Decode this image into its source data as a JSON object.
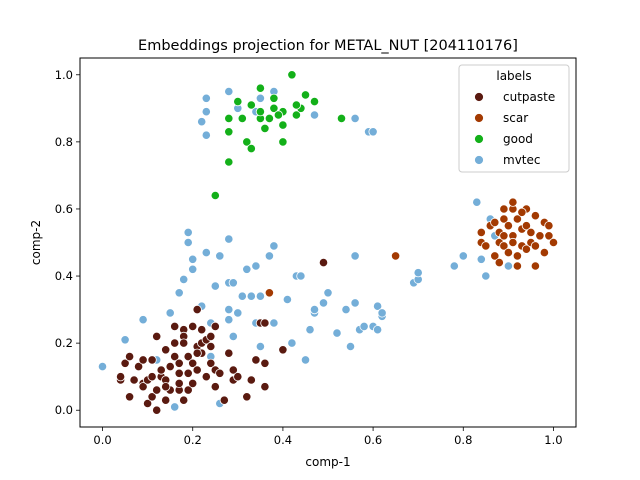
{
  "chart_data": {
    "type": "scatter",
    "title": "Embeddings projection for METAL_NUT [204110176]",
    "xlabel": "comp-1",
    "ylabel": "comp-2",
    "xlim": [
      -0.05,
      1.05
    ],
    "ylim": [
      -0.05,
      1.05
    ],
    "xticks": [
      "0.0",
      "0.2",
      "0.4",
      "0.6",
      "0.8",
      "1.0"
    ],
    "yticks": [
      "0.0",
      "0.2",
      "0.4",
      "0.6",
      "0.8",
      "1.0"
    ],
    "grid": false,
    "legend": {
      "title": "labels",
      "placement": "top-right",
      "entries": [
        "cutpaste",
        "scar",
        "good",
        "mvtec"
      ]
    },
    "colors": {
      "cutpaste": "#5a1a10",
      "scar": "#a33a02",
      "good": "#13b019",
      "mvtec": "#74aed8"
    },
    "series": [
      {
        "name": "mvtec",
        "points": [
          [
            0.0,
            0.13
          ],
          [
            0.05,
            0.21
          ],
          [
            0.09,
            0.27
          ],
          [
            0.12,
            0.15
          ],
          [
            0.15,
            0.29
          ],
          [
            0.16,
            0.01
          ],
          [
            0.17,
            0.35
          ],
          [
            0.18,
            0.39
          ],
          [
            0.19,
            0.5
          ],
          [
            0.19,
            0.53
          ],
          [
            0.2,
            0.42
          ],
          [
            0.2,
            0.45
          ],
          [
            0.22,
            0.31
          ],
          [
            0.23,
            0.47
          ],
          [
            0.24,
            0.26
          ],
          [
            0.24,
            0.16
          ],
          [
            0.25,
            0.37
          ],
          [
            0.26,
            0.02
          ],
          [
            0.26,
            0.46
          ],
          [
            0.28,
            0.51
          ],
          [
            0.28,
            0.38
          ],
          [
            0.28,
            0.3
          ],
          [
            0.28,
            0.27
          ],
          [
            0.29,
            0.38
          ],
          [
            0.29,
            0.22
          ],
          [
            0.3,
            0.29
          ],
          [
            0.31,
            0.34
          ],
          [
            0.32,
            0.42
          ],
          [
            0.33,
            0.34
          ],
          [
            0.34,
            0.26
          ],
          [
            0.34,
            0.43
          ],
          [
            0.35,
            0.34
          ],
          [
            0.35,
            0.19
          ],
          [
            0.36,
            0.26
          ],
          [
            0.37,
            0.46
          ],
          [
            0.38,
            0.26
          ],
          [
            0.38,
            0.49
          ],
          [
            0.4,
            0.18
          ],
          [
            0.41,
            0.33
          ],
          [
            0.42,
            0.2
          ],
          [
            0.43,
            0.4
          ],
          [
            0.44,
            0.4
          ],
          [
            0.45,
            0.15
          ],
          [
            0.46,
            0.24
          ],
          [
            0.47,
            0.29
          ],
          [
            0.47,
            0.3
          ],
          [
            0.49,
            0.32
          ],
          [
            0.5,
            0.35
          ],
          [
            0.52,
            0.23
          ],
          [
            0.54,
            0.3
          ],
          [
            0.55,
            0.19
          ],
          [
            0.56,
            0.46
          ],
          [
            0.56,
            0.32
          ],
          [
            0.57,
            0.24
          ],
          [
            0.58,
            0.25
          ],
          [
            0.6,
            0.25
          ],
          [
            0.61,
            0.31
          ],
          [
            0.62,
            0.28
          ],
          [
            0.62,
            0.29
          ],
          [
            0.61,
            0.24
          ],
          [
            0.69,
            0.38
          ],
          [
            0.7,
            0.39
          ],
          [
            0.7,
            0.41
          ],
          [
            0.78,
            0.43
          ],
          [
            0.8,
            0.46
          ],
          [
            0.84,
            0.45
          ],
          [
            0.83,
            0.62
          ],
          [
            0.85,
            0.4
          ],
          [
            0.86,
            0.57
          ],
          [
            0.87,
            0.52
          ],
          [
            0.9,
            0.43
          ],
          [
            0.88,
            0.5
          ],
          [
            0.22,
            0.86
          ],
          [
            0.23,
            0.93
          ],
          [
            0.23,
            0.89
          ],
          [
            0.23,
            0.82
          ],
          [
            0.28,
            0.95
          ],
          [
            0.3,
            0.9
          ],
          [
            0.34,
            0.89
          ],
          [
            0.35,
            0.93
          ],
          [
            0.38,
            0.95
          ],
          [
            0.47,
            0.88
          ],
          [
            0.56,
            0.87
          ],
          [
            0.59,
            0.83
          ],
          [
            0.6,
            0.83
          ]
        ]
      },
      {
        "name": "good",
        "points": [
          [
            0.25,
            0.64
          ],
          [
            0.28,
            0.74
          ],
          [
            0.28,
            0.83
          ],
          [
            0.28,
            0.87
          ],
          [
            0.3,
            0.92
          ],
          [
            0.31,
            0.87
          ],
          [
            0.32,
            0.8
          ],
          [
            0.33,
            0.78
          ],
          [
            0.33,
            0.91
          ],
          [
            0.35,
            0.96
          ],
          [
            0.35,
            0.87
          ],
          [
            0.35,
            0.89
          ],
          [
            0.36,
            0.84
          ],
          [
            0.37,
            0.87
          ],
          [
            0.38,
            0.93
          ],
          [
            0.38,
            0.9
          ],
          [
            0.4,
            0.8
          ],
          [
            0.4,
            0.85
          ],
          [
            0.4,
            0.89
          ],
          [
            0.42,
            1.0
          ],
          [
            0.43,
            0.88
          ],
          [
            0.44,
            0.9
          ],
          [
            0.45,
            0.94
          ],
          [
            0.47,
            0.92
          ],
          [
            0.53,
            0.87
          ],
          [
            0.43,
            0.91
          ],
          [
            0.39,
            0.88
          ]
        ]
      },
      {
        "name": "scar",
        "points": [
          [
            0.37,
            0.35
          ],
          [
            0.65,
            0.46
          ],
          [
            0.84,
            0.53
          ],
          [
            0.84,
            0.5
          ],
          [
            0.85,
            0.49
          ],
          [
            0.86,
            0.55
          ],
          [
            0.87,
            0.46
          ],
          [
            0.87,
            0.56
          ],
          [
            0.88,
            0.5
          ],
          [
            0.88,
            0.53
          ],
          [
            0.89,
            0.57
          ],
          [
            0.89,
            0.52
          ],
          [
            0.89,
            0.49
          ],
          [
            0.9,
            0.47
          ],
          [
            0.9,
            0.55
          ],
          [
            0.91,
            0.6
          ],
          [
            0.91,
            0.62
          ],
          [
            0.91,
            0.52
          ],
          [
            0.91,
            0.5
          ],
          [
            0.92,
            0.46
          ],
          [
            0.92,
            0.57
          ],
          [
            0.93,
            0.54
          ],
          [
            0.93,
            0.49
          ],
          [
            0.94,
            0.48
          ],
          [
            0.94,
            0.55
          ],
          [
            0.94,
            0.6
          ],
          [
            0.95,
            0.53
          ],
          [
            0.95,
            0.5
          ],
          [
            0.96,
            0.43
          ],
          [
            0.96,
            0.58
          ],
          [
            0.96,
            0.49
          ],
          [
            0.97,
            0.52
          ],
          [
            0.98,
            0.47
          ],
          [
            0.98,
            0.56
          ],
          [
            0.99,
            0.52
          ],
          [
            1.0,
            0.5
          ],
          [
            0.99,
            0.55
          ],
          [
            0.92,
            0.43
          ],
          [
            0.88,
            0.44
          ],
          [
            0.89,
            0.6
          ],
          [
            0.93,
            0.59
          ]
        ]
      },
      {
        "name": "cutpaste",
        "points": [
          [
            0.04,
            0.09
          ],
          [
            0.04,
            0.1
          ],
          [
            0.05,
            0.14
          ],
          [
            0.06,
            0.16
          ],
          [
            0.06,
            0.04
          ],
          [
            0.07,
            0.09
          ],
          [
            0.08,
            0.13
          ],
          [
            0.09,
            0.08
          ],
          [
            0.09,
            0.15
          ],
          [
            0.09,
            0.07
          ],
          [
            0.1,
            0.02
          ],
          [
            0.1,
            0.09
          ],
          [
            0.11,
            0.04
          ],
          [
            0.11,
            0.1
          ],
          [
            0.11,
            0.15
          ],
          [
            0.12,
            0.0
          ],
          [
            0.12,
            0.22
          ],
          [
            0.12,
            0.06
          ],
          [
            0.13,
            0.1
          ],
          [
            0.13,
            0.12
          ],
          [
            0.14,
            0.03
          ],
          [
            0.14,
            0.18
          ],
          [
            0.14,
            0.09
          ],
          [
            0.15,
            0.13
          ],
          [
            0.15,
            0.06
          ],
          [
            0.16,
            0.16
          ],
          [
            0.16,
            0.2
          ],
          [
            0.16,
            0.25
          ],
          [
            0.17,
            0.06
          ],
          [
            0.17,
            0.08
          ],
          [
            0.17,
            0.11
          ],
          [
            0.17,
            0.14
          ],
          [
            0.18,
            0.24
          ],
          [
            0.18,
            0.22
          ],
          [
            0.18,
            0.03
          ],
          [
            0.18,
            0.2
          ],
          [
            0.19,
            0.11
          ],
          [
            0.19,
            0.16
          ],
          [
            0.19,
            0.06
          ],
          [
            0.2,
            0.14
          ],
          [
            0.2,
            0.25
          ],
          [
            0.2,
            0.08
          ],
          [
            0.21,
            0.3
          ],
          [
            0.21,
            0.19
          ],
          [
            0.21,
            0.12
          ],
          [
            0.22,
            0.17
          ],
          [
            0.22,
            0.2
          ],
          [
            0.22,
            0.24
          ],
          [
            0.23,
            0.21
          ],
          [
            0.23,
            0.1
          ],
          [
            0.24,
            0.14
          ],
          [
            0.24,
            0.22
          ],
          [
            0.25,
            0.07
          ],
          [
            0.25,
            0.12
          ],
          [
            0.25,
            0.25
          ],
          [
            0.26,
            0.11
          ],
          [
            0.27,
            0.03
          ],
          [
            0.28,
            0.17
          ],
          [
            0.29,
            0.09
          ],
          [
            0.29,
            0.12
          ],
          [
            0.3,
            0.1
          ],
          [
            0.32,
            0.04
          ],
          [
            0.33,
            0.09
          ],
          [
            0.34,
            0.15
          ],
          [
            0.35,
            0.26
          ],
          [
            0.36,
            0.26
          ],
          [
            0.36,
            0.07
          ],
          [
            0.36,
            0.14
          ],
          [
            0.4,
            0.18
          ],
          [
            0.49,
            0.44
          ],
          [
            0.21,
            0.17
          ],
          [
            0.24,
            0.19
          ],
          [
            0.14,
            0.07
          ]
        ]
      }
    ]
  }
}
